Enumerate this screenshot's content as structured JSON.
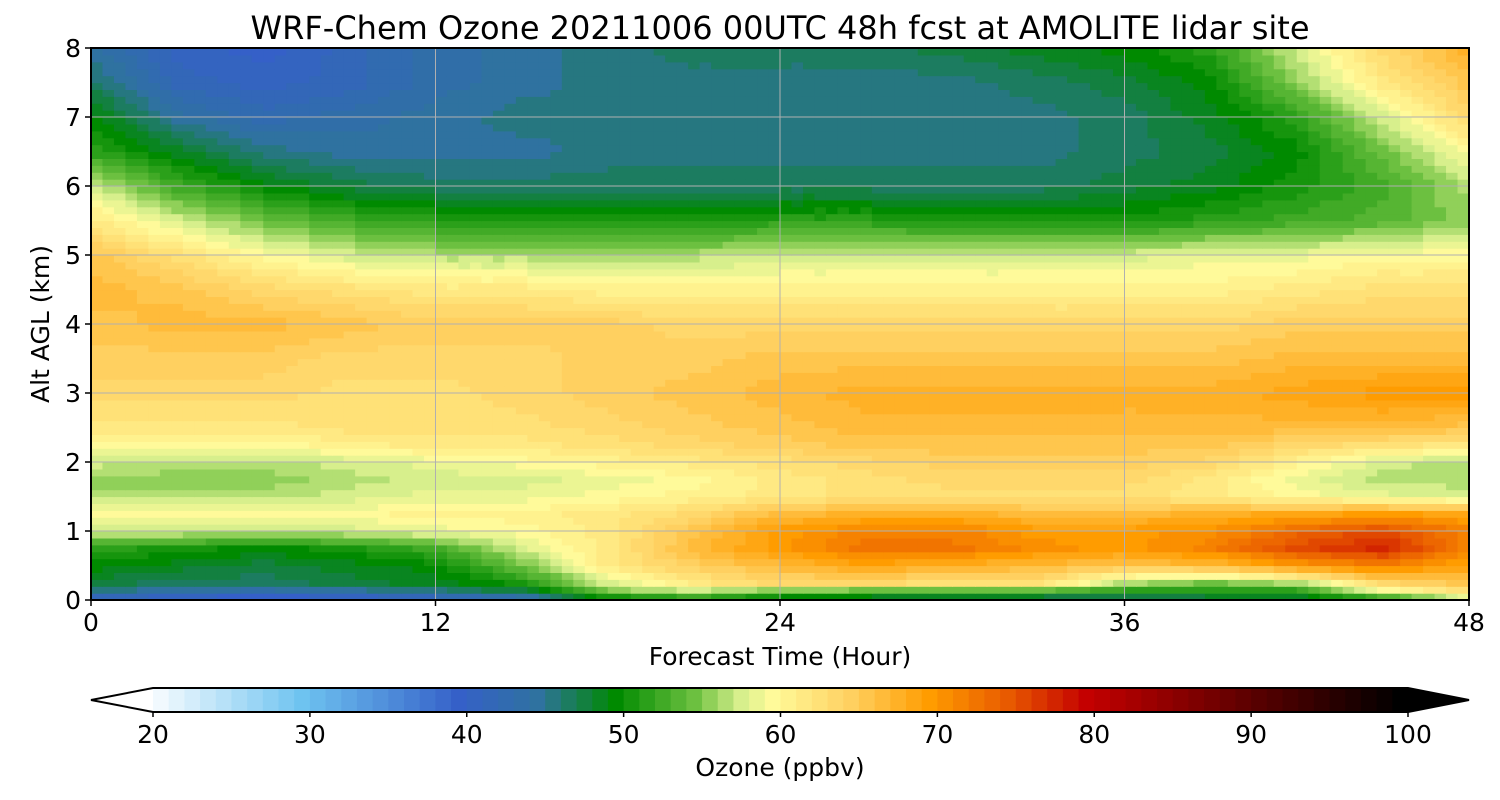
{
  "chart_data": {
    "type": "heatmap",
    "title": "WRF-Chem Ozone  20211006 00UTC 48h fcst at AMOLITE lidar site",
    "xlabel": "Forecast Time (Hour)",
    "ylabel": "Alt AGL (km)",
    "xlim": [
      0,
      48
    ],
    "ylim": [
      0,
      8
    ],
    "x_ticks": [
      "0",
      "12",
      "24",
      "36",
      "48"
    ],
    "y_ticks": [
      "0",
      "1",
      "2",
      "3",
      "4",
      "5",
      "6",
      "7",
      "8"
    ],
    "grid": true,
    "x": [
      0,
      3,
      6,
      9,
      12,
      15,
      18,
      21,
      24,
      27,
      30,
      33,
      36,
      39,
      42,
      45,
      48
    ],
    "y": [
      0,
      0.1,
      0.25,
      0.5,
      0.75,
      1,
      1.25,
      1.5,
      1.75,
      2,
      2.25,
      2.5,
      3,
      3.5,
      4,
      4.5,
      5,
      5.5,
      6,
      6.5,
      7,
      7.5,
      8
    ],
    "z": [
      [
        40,
        38,
        37,
        38,
        40,
        42,
        47,
        50,
        49,
        48,
        47,
        46,
        46,
        47,
        48,
        49,
        56
      ],
      [
        45,
        44,
        43,
        44,
        45,
        47,
        55,
        56,
        52,
        51,
        51,
        51,
        50,
        50,
        50,
        58,
        62
      ],
      [
        48,
        47,
        47,
        48,
        49,
        51,
        58,
        62,
        64,
        64,
        63,
        63,
        57,
        55,
        57,
        64,
        66
      ],
      [
        50,
        49,
        48,
        49,
        50,
        55,
        62,
        65,
        67,
        69,
        68,
        67,
        66,
        67,
        70,
        72,
        69
      ],
      [
        52,
        51,
        50,
        51,
        53,
        58,
        62,
        67,
        70,
        73,
        73,
        71,
        70,
        72,
        76,
        78,
        72
      ],
      [
        58,
        58,
        57,
        58,
        59,
        60,
        62,
        66,
        70,
        72,
        72,
        70,
        70,
        71,
        74,
        76,
        72
      ],
      [
        60,
        60,
        60,
        60,
        61,
        61,
        62,
        64,
        67,
        68,
        68,
        67,
        67,
        68,
        69,
        70,
        69
      ],
      [
        57,
        57,
        57,
        58,
        59,
        59,
        60,
        61,
        62,
        63,
        63,
        63,
        63,
        62,
        60,
        59,
        58
      ],
      [
        56,
        56,
        56,
        57,
        58,
        58,
        59,
        60,
        62,
        63,
        64,
        64,
        64,
        62,
        59,
        57,
        57
      ],
      [
        58,
        57,
        57,
        58,
        59,
        60,
        61,
        62,
        63,
        64,
        65,
        65,
        65,
        64,
        61,
        58,
        57
      ],
      [
        60,
        60,
        60,
        61,
        62,
        62,
        63,
        64,
        65,
        66,
        66,
        66,
        66,
        66,
        64,
        63,
        62
      ],
      [
        62,
        62,
        62,
        63,
        63,
        63,
        64,
        65,
        66,
        67,
        67,
        67,
        67,
        67,
        67,
        67,
        66
      ],
      [
        64,
        64,
        64,
        63,
        63,
        64,
        65,
        66,
        67,
        68,
        68,
        68,
        68,
        68,
        69,
        70,
        70
      ],
      [
        65,
        65,
        65,
        64,
        64,
        64,
        65,
        65,
        66,
        66,
        66,
        66,
        66,
        66,
        67,
        67,
        67
      ],
      [
        66,
        67,
        67,
        66,
        65,
        65,
        65,
        64,
        64,
        64,
        64,
        64,
        64,
        64,
        65,
        65,
        65
      ],
      [
        67,
        66,
        64,
        63,
        62,
        62,
        61,
        61,
        61,
        61,
        61,
        61,
        61,
        61,
        62,
        63,
        63
      ],
      [
        66,
        63,
        60,
        58,
        57,
        57,
        57,
        57,
        58,
        58,
        58,
        58,
        58,
        59,
        59,
        60,
        60
      ],
      [
        62,
        58,
        55,
        53,
        52,
        51,
        51,
        51,
        52,
        52,
        51,
        51,
        51,
        52,
        53,
        54,
        56
      ],
      [
        58,
        53,
        50,
        48,
        47,
        47,
        47,
        47,
        47,
        47,
        47,
        47,
        48,
        49,
        51,
        53,
        57
      ],
      [
        52,
        49,
        46,
        45,
        45,
        45,
        46,
        46,
        46,
        46,
        46,
        46,
        47,
        48,
        50,
        55,
        60
      ],
      [
        50,
        45,
        43,
        44,
        45,
        46,
        46,
        46,
        46,
        46,
        46,
        46,
        47,
        49,
        52,
        58,
        64
      ],
      [
        47,
        42,
        41,
        42,
        44,
        45,
        46,
        46,
        46,
        46,
        46,
        47,
        48,
        50,
        56,
        62,
        66
      ],
      [
        45,
        41,
        40,
        42,
        44,
        45,
        46,
        47,
        47,
        47,
        48,
        49,
        50,
        52,
        58,
        64,
        68
      ]
    ],
    "colorbar": {
      "label": "Ozone  (ppbv)",
      "min": 20,
      "max": 100,
      "step": 1,
      "extend": "both",
      "tick_labels": [
        "20",
        "30",
        "40",
        "50",
        "60",
        "70",
        "80",
        "90",
        "100"
      ],
      "color_stops": [
        [
          20,
          "#ffffff"
        ],
        [
          30,
          "#6ec3f0"
        ],
        [
          40,
          "#3560c8"
        ],
        [
          45,
          "#2f72a0"
        ],
        [
          50,
          "#008a00"
        ],
        [
          55,
          "#6cc040"
        ],
        [
          58,
          "#d7ef8c"
        ],
        [
          60,
          "#fffa9a"
        ],
        [
          65,
          "#ffd060"
        ],
        [
          70,
          "#ff9c00"
        ],
        [
          75,
          "#e85a00"
        ],
        [
          80,
          "#c40000"
        ],
        [
          90,
          "#600000"
        ],
        [
          100,
          "#000000"
        ]
      ]
    }
  }
}
